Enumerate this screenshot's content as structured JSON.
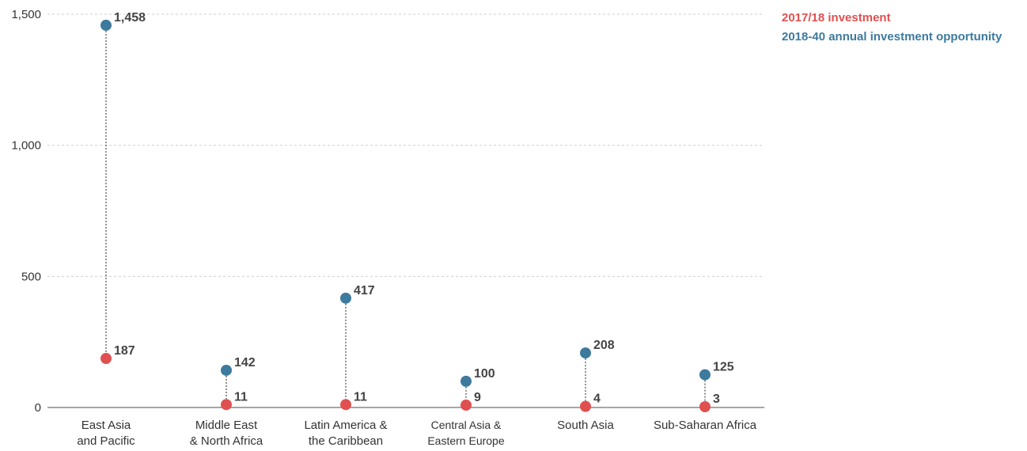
{
  "chart_data": {
    "type": "scatter",
    "style": "dumbbell",
    "title": "",
    "xlabel": "",
    "ylabel": "",
    "ylim": [
      0,
      1500
    ],
    "yticks": [
      0,
      500,
      1000,
      1500
    ],
    "ytick_labels": [
      "0",
      "500",
      "1,000",
      "1,500"
    ],
    "grid": true,
    "legend_position": "top-right",
    "categories": [
      [
        "East Asia",
        "and Pacific"
      ],
      [
        "Middle East",
        "& North Africa"
      ],
      [
        "Latin America &",
        "the Caribbean"
      ],
      [
        "Central Asia &",
        "Eastern Europe"
      ],
      [
        "South Asia"
      ],
      [
        "Sub-Saharan Africa"
      ]
    ],
    "series": [
      {
        "name": "2017/18 investment",
        "color": "#e05050",
        "values": [
          187,
          11,
          11,
          9,
          4,
          3
        ],
        "labels": [
          "187",
          "11",
          "11",
          "9",
          "4",
          "3"
        ]
      },
      {
        "name": "2018-40 annual investment opportunity",
        "color": "#3d7a9e",
        "values": [
          1458,
          142,
          417,
          100,
          208,
          125
        ],
        "labels": [
          "1,458",
          "142",
          "417",
          "100",
          "208",
          "125"
        ]
      }
    ]
  }
}
